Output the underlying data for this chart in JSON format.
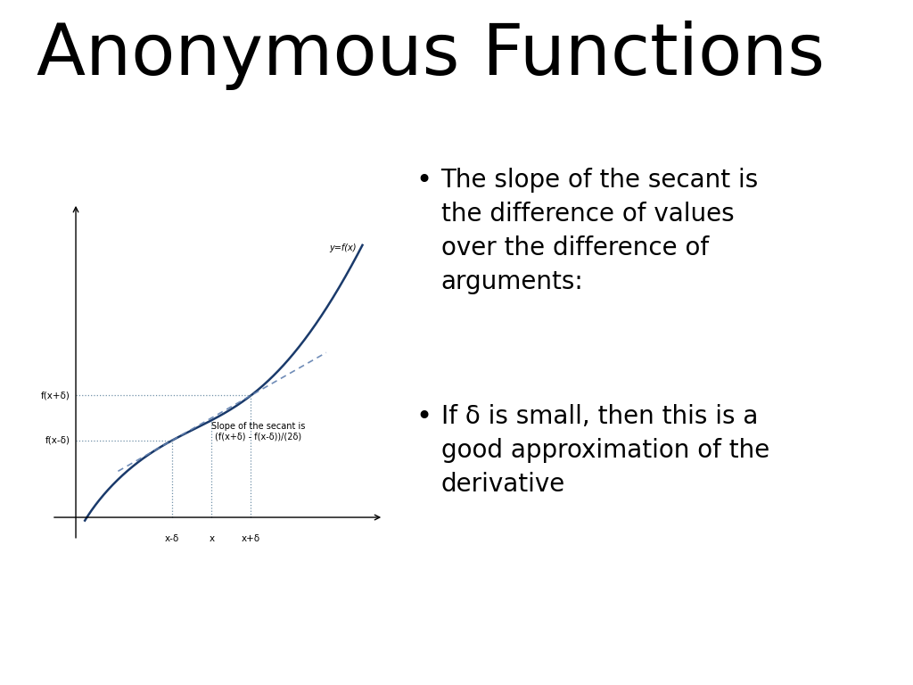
{
  "title": "Anonymous Functions",
  "title_fontsize": 58,
  "bg_color": "#ffffff",
  "bullet1_text": "The slope of the secant is\nthe difference of values\nover the difference of\narguments:",
  "bullet2_text": "If δ is small, then this is a\ngood approximation of the\nderivative",
  "bullet_fontsize": 20,
  "graph_annotation_line1": "Slope of the secant is",
  "graph_annotation_line2": "(f(x+δ) - f(x-δ))/(2δ)",
  "graph_label_y1": "f(x+δ)",
  "graph_label_y2": "f(x-δ)",
  "graph_label_x1": "x-δ",
  "graph_label_x2": "x",
  "graph_label_x3": "x+δ",
  "graph_label_func": "y=f(x)",
  "curve_color": "#1a3a6b",
  "secant_color": "#6080b0",
  "dotted_color": "#7090a8"
}
